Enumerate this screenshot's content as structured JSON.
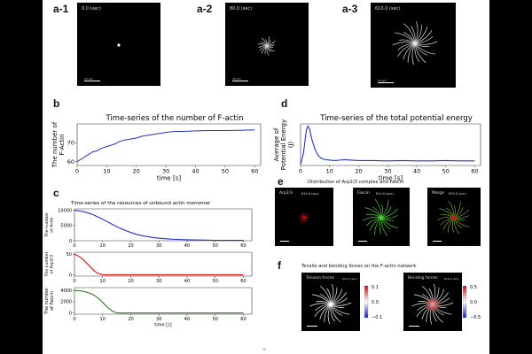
{
  "panel_labels": {
    "a1": "a-1",
    "a2": "a-2",
    "a3": "a-3",
    "b": "b",
    "c": "c",
    "d": "d",
    "e": "e",
    "f": "f"
  },
  "panel_a": {
    "times": [
      "0.0 (sec)",
      "80.0 (sec)",
      "610.0 (sec)"
    ],
    "scale_label": "10 μm"
  },
  "panel_e": {
    "title": "Distribution of Arp2/3 complex and Fascin",
    "images": [
      {
        "label": "Arp2/3",
        "time": "610.0 (sec)"
      },
      {
        "label": "Fascin",
        "time": "610.0 (sec)"
      },
      {
        "label": "Marge",
        "time": "610.0 (sec)"
      }
    ]
  },
  "panel_f": {
    "title": "Tensile and bonding forces on the F-actin network",
    "images": [
      {
        "label": "Tension forces",
        "time": "610.0 (sec)",
        "colorbar_ticks": [
          "0.1",
          "0.0",
          "−0.1"
        ]
      },
      {
        "label": "Bending forces",
        "time": "610.0 (sec)",
        "colorbar_ticks": [
          "0.5",
          "0.0",
          "−0.5"
        ]
      }
    ]
  },
  "page_marker": "–",
  "colors": {
    "blue": "#2233cc",
    "red": "#dd1111",
    "green": "#2e7d1e",
    "background": "#000000"
  },
  "chart_data": [
    {
      "id": "b",
      "type": "line",
      "title": "Time-series of the number of F-actin",
      "xlabel": "time [s]",
      "ylabel": "The number of F-Actin",
      "xlim": [
        0,
        62
      ],
      "ylim": [
        58,
        80
      ],
      "xticks": [
        0,
        10,
        20,
        30,
        40,
        50,
        60
      ],
      "yticks": [
        60,
        70
      ],
      "x": [
        0,
        1,
        2,
        3,
        4,
        5,
        6,
        7,
        8,
        9,
        10,
        11,
        12,
        13,
        14,
        16,
        18,
        20,
        22,
        24,
        26,
        28,
        30,
        33,
        36,
        40,
        45,
        50,
        55,
        60
      ],
      "y": [
        60,
        61,
        62,
        63,
        64,
        65,
        65.5,
        66,
        67,
        67.5,
        68,
        68.5,
        69,
        69.5,
        70.5,
        71.5,
        72,
        72.5,
        73.5,
        74,
        74.5,
        75,
        75.5,
        76,
        76,
        76.3,
        76.5,
        76.5,
        76.6,
        76.8
      ],
      "color": "#2233cc"
    },
    {
      "id": "d",
      "type": "line",
      "title": "Time-series of the total potential energy",
      "xlabel": "time [s]",
      "ylabel": "Average of Potential Energy",
      "ylabel_unit": "(J)",
      "xlim": [
        0,
        62
      ],
      "ylim": [
        0,
        1
      ],
      "xticks": [
        0,
        10,
        20,
        30,
        40,
        50,
        60
      ],
      "yticks": [],
      "x": [
        0,
        1,
        2,
        2.5,
        3,
        4,
        5,
        6,
        7,
        8,
        10,
        12,
        15,
        20,
        25,
        30,
        35,
        40,
        45,
        50,
        55,
        60
      ],
      "y": [
        0.03,
        0.3,
        0.85,
        0.95,
        0.9,
        0.6,
        0.38,
        0.25,
        0.18,
        0.15,
        0.13,
        0.12,
        0.14,
        0.12,
        0.12,
        0.11,
        0.12,
        0.11,
        0.11,
        0.12,
        0.11,
        0.11
      ],
      "color": "#2233cc"
    },
    {
      "id": "c1",
      "type": "line",
      "title": "Time-series of the resources of unbound actin monomer",
      "ylabel": "The number of Actin",
      "xlim": [
        0,
        63
      ],
      "ylim": [
        0,
        10500
      ],
      "xticks": [
        0,
        10,
        20,
        30,
        40,
        50,
        60
      ],
      "yticks": [
        0,
        5000,
        10000
      ],
      "x": [
        0,
        2,
        4,
        6,
        8,
        10,
        12,
        14,
        16,
        18,
        20,
        22,
        25,
        28,
        31,
        35,
        40,
        45,
        50,
        55,
        60
      ],
      "y": [
        10000,
        9800,
        9400,
        8800,
        8000,
        7100,
        6100,
        5100,
        4200,
        3400,
        2700,
        2100,
        1500,
        1050,
        750,
        500,
        320,
        220,
        160,
        130,
        110
      ],
      "color": "#2233cc"
    },
    {
      "id": "c2",
      "type": "line",
      "ylabel": "The number of Arp2/3",
      "xlim": [
        0,
        63
      ],
      "ylim": [
        -3,
        55
      ],
      "xticks": [
        0,
        10,
        20,
        30,
        40,
        50,
        60
      ],
      "yticks": [
        0,
        50
      ],
      "x": [
        0,
        1,
        2,
        3,
        4,
        5,
        6,
        7,
        8,
        9,
        10,
        12,
        20,
        30,
        40,
        50,
        60
      ],
      "y": [
        50,
        47,
        43,
        38,
        31,
        24,
        17,
        10,
        5,
        2,
        0.5,
        0,
        0,
        0,
        0,
        0,
        0
      ],
      "color": "#dd1111"
    },
    {
      "id": "c3",
      "type": "line",
      "ylabel": "The number of Fascin",
      "xlabel": "time [s]",
      "xlim": [
        0,
        63
      ],
      "ylim": [
        -200,
        4500
      ],
      "xticks": [
        0,
        10,
        20,
        30,
        40,
        50,
        60
      ],
      "yticks": [
        0,
        2000,
        4000
      ],
      "x": [
        0,
        2,
        4,
        6,
        7,
        8,
        9,
        10,
        11,
        12,
        13,
        14,
        15,
        16,
        20,
        30,
        40,
        50,
        60
      ],
      "y": [
        4000,
        3950,
        3750,
        3400,
        3150,
        2800,
        2400,
        1900,
        1400,
        900,
        500,
        200,
        50,
        0,
        0,
        0,
        0,
        0,
        0
      ],
      "color": "#2e7d1e"
    }
  ]
}
